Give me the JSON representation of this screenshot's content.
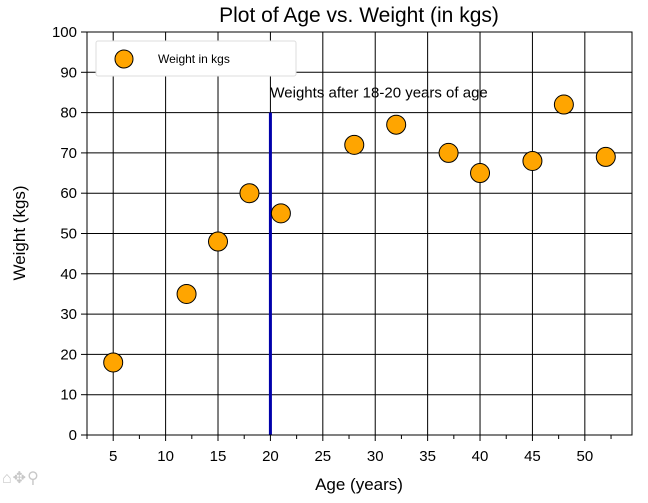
{
  "toolbar": {
    "home_icon": "home-icon",
    "pan_icon": "move-icon",
    "zoom_icon": "zoom-icon"
  },
  "chart_data": {
    "type": "scatter",
    "title": "Plot of Age vs. Weight (in kgs)",
    "xlabel": "Age (years)",
    "ylabel": "Weight (kgs)",
    "xlim": [
      2.5,
      54.5
    ],
    "ylim": [
      0,
      100
    ],
    "xticks": [
      5,
      10,
      15,
      20,
      25,
      30,
      35,
      40,
      45,
      50
    ],
    "yticks": [
      0,
      10,
      20,
      30,
      40,
      50,
      60,
      70,
      80,
      90,
      100
    ],
    "grid": true,
    "legend_position": "top-left",
    "series": [
      {
        "name": "Weight in kgs",
        "color": "#FFA500",
        "edge_color": "#000000",
        "points": [
          {
            "x": 5,
            "y": 18
          },
          {
            "x": 12,
            "y": 35
          },
          {
            "x": 15,
            "y": 48
          },
          {
            "x": 18,
            "y": 60
          },
          {
            "x": 21,
            "y": 55
          },
          {
            "x": 28,
            "y": 72
          },
          {
            "x": 32,
            "y": 77
          },
          {
            "x": 37,
            "y": 70
          },
          {
            "x": 40,
            "y": 65
          },
          {
            "x": 45,
            "y": 68
          },
          {
            "x": 48,
            "y": 82
          },
          {
            "x": 52,
            "y": 69
          }
        ]
      }
    ],
    "vline": {
      "x": 20,
      "y_from": 0,
      "y_to": 80,
      "color": "#0000AA"
    },
    "annotation": {
      "text": "Weights after 18-20 years of age",
      "x": 20,
      "y": 85
    }
  }
}
